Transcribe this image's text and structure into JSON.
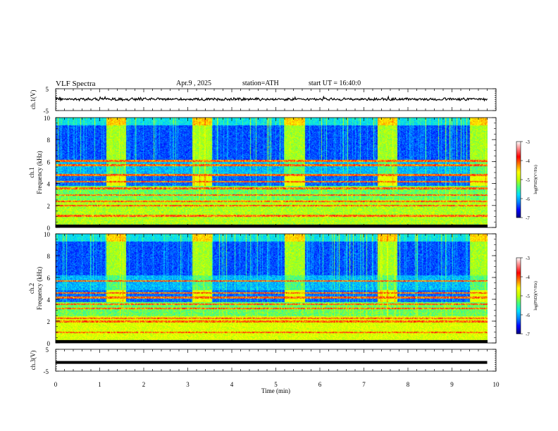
{
  "header": {
    "title": "VLF  Spectra",
    "date": "Apr.9  , 2025",
    "station": "station=ATH",
    "start": "start  UT  =   16:40:0"
  },
  "chart_data": [
    {
      "type": "line",
      "panel": "ch1-waveform",
      "ylabel": "ch.1(V)",
      "yticks": [
        "5",
        "-5"
      ],
      "ylim": [
        -5,
        5
      ],
      "x_unit": "min",
      "xlim": [
        0,
        10
      ],
      "data_end": 9.8,
      "series": [
        {
          "values_approx": "noisy trace centered near 0 V, amplitude about ±0.6 V with occasional spikes"
        }
      ]
    },
    {
      "type": "heatmap",
      "panel": "ch1-spectrogram",
      "ylabel": "ch.1\nFrequency (kHz)",
      "yticks": [
        "0",
        "2",
        "4",
        "6",
        "8",
        "10"
      ],
      "ylim": [
        0,
        10
      ],
      "xlim": [
        0,
        10
      ],
      "data_end": 9.8,
      "colorbar": {
        "label": "log(PSD)(V²/Hz)",
        "ticks": [
          "-3",
          "-4",
          "-5",
          "-6",
          "-7"
        ],
        "range": [
          -7,
          -3
        ]
      },
      "features": {
        "quiet_interval_starts_min": [
          1.15,
          3.1,
          5.2,
          7.3,
          9.4
        ],
        "quiet_interval_length_min": 0.45,
        "persistent_lines_khz": [
          0.1,
          1.1,
          2.0,
          2.4,
          3.0,
          3.6,
          4.2,
          4.8,
          5.7,
          6.1
        ]
      }
    },
    {
      "type": "heatmap",
      "panel": "ch2-spectrogram",
      "ylabel": "ch.2\nFrequency (kHz)",
      "yticks": [
        "0",
        "2",
        "4",
        "6",
        "8",
        "10"
      ],
      "ylim": [
        0,
        10
      ],
      "xlim": [
        0,
        10
      ],
      "data_end": 9.8,
      "colorbar": {
        "label": "log(PSD)(V²/Hz)",
        "ticks": [
          "-3",
          "-4",
          "-5",
          "-6",
          "-7"
        ],
        "range": [
          -7,
          -3
        ]
      },
      "features": {
        "quiet_interval_starts_min": [
          1.15,
          3.1,
          5.2,
          7.3,
          9.4
        ],
        "quiet_interval_length_min": 0.45,
        "persistent_lines_khz": [
          0.1,
          1.0,
          2.0,
          2.3,
          3.2,
          3.6,
          4.2,
          4.6,
          5.7
        ]
      }
    },
    {
      "type": "line",
      "panel": "ch3-waveform",
      "ylabel": "ch.3(V)",
      "yticks": [
        "5",
        "-5"
      ],
      "ylim": [
        -5,
        5
      ],
      "xlim": [
        0,
        10
      ],
      "data_end": 9.8,
      "series": [
        {
          "values_approx": "flat thick trace near -1 V"
        }
      ]
    }
  ],
  "xaxis": {
    "label": "Time  (min)",
    "ticks": [
      "0",
      "1",
      "2",
      "3",
      "4",
      "5",
      "6",
      "7",
      "8",
      "9",
      "10"
    ]
  },
  "colors": {
    "colormap": [
      "#000080",
      "#0000ff",
      "#0080ff",
      "#00e0ff",
      "#40ff80",
      "#c0ff00",
      "#ffff00",
      "#ff8000",
      "#ff0000",
      "#ff8080",
      "#ffffff"
    ],
    "trace": "#000000"
  }
}
